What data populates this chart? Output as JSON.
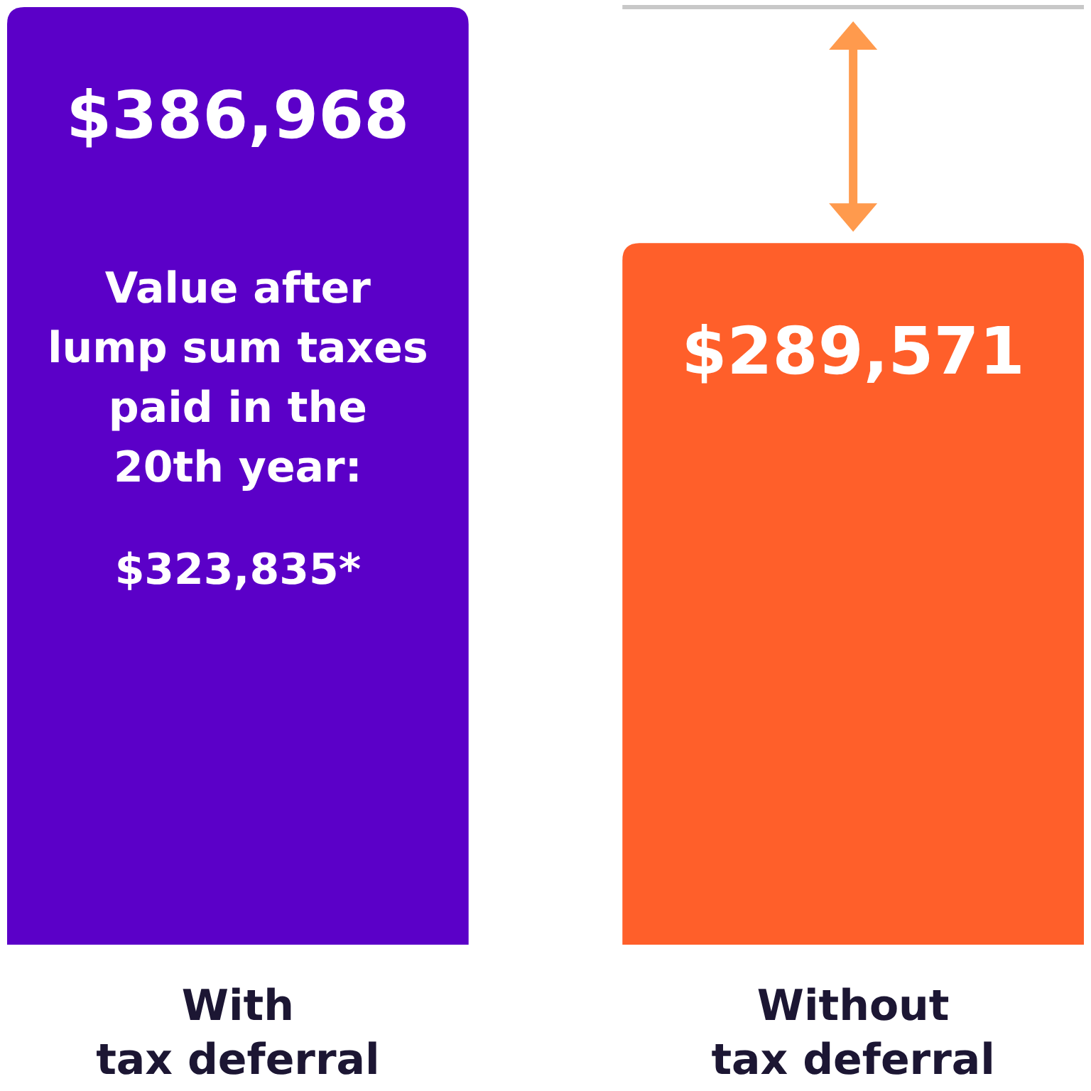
{
  "chart_data": {
    "type": "bar",
    "categories": [
      "With tax deferral",
      "Without tax deferral"
    ],
    "values": [
      386968,
      289571
    ],
    "colors": [
      "#5b00c8",
      "#ff5f2a"
    ],
    "value_labels": [
      "$386,968",
      "$289,571"
    ],
    "annotations": [
      "Value after lump sum taxes paid in the 20th year:",
      "$323,835*"
    ],
    "ref_lines": [
      {
        "axis": "y",
        "value": 386968,
        "color": "#c8c8c8"
      }
    ]
  }
}
